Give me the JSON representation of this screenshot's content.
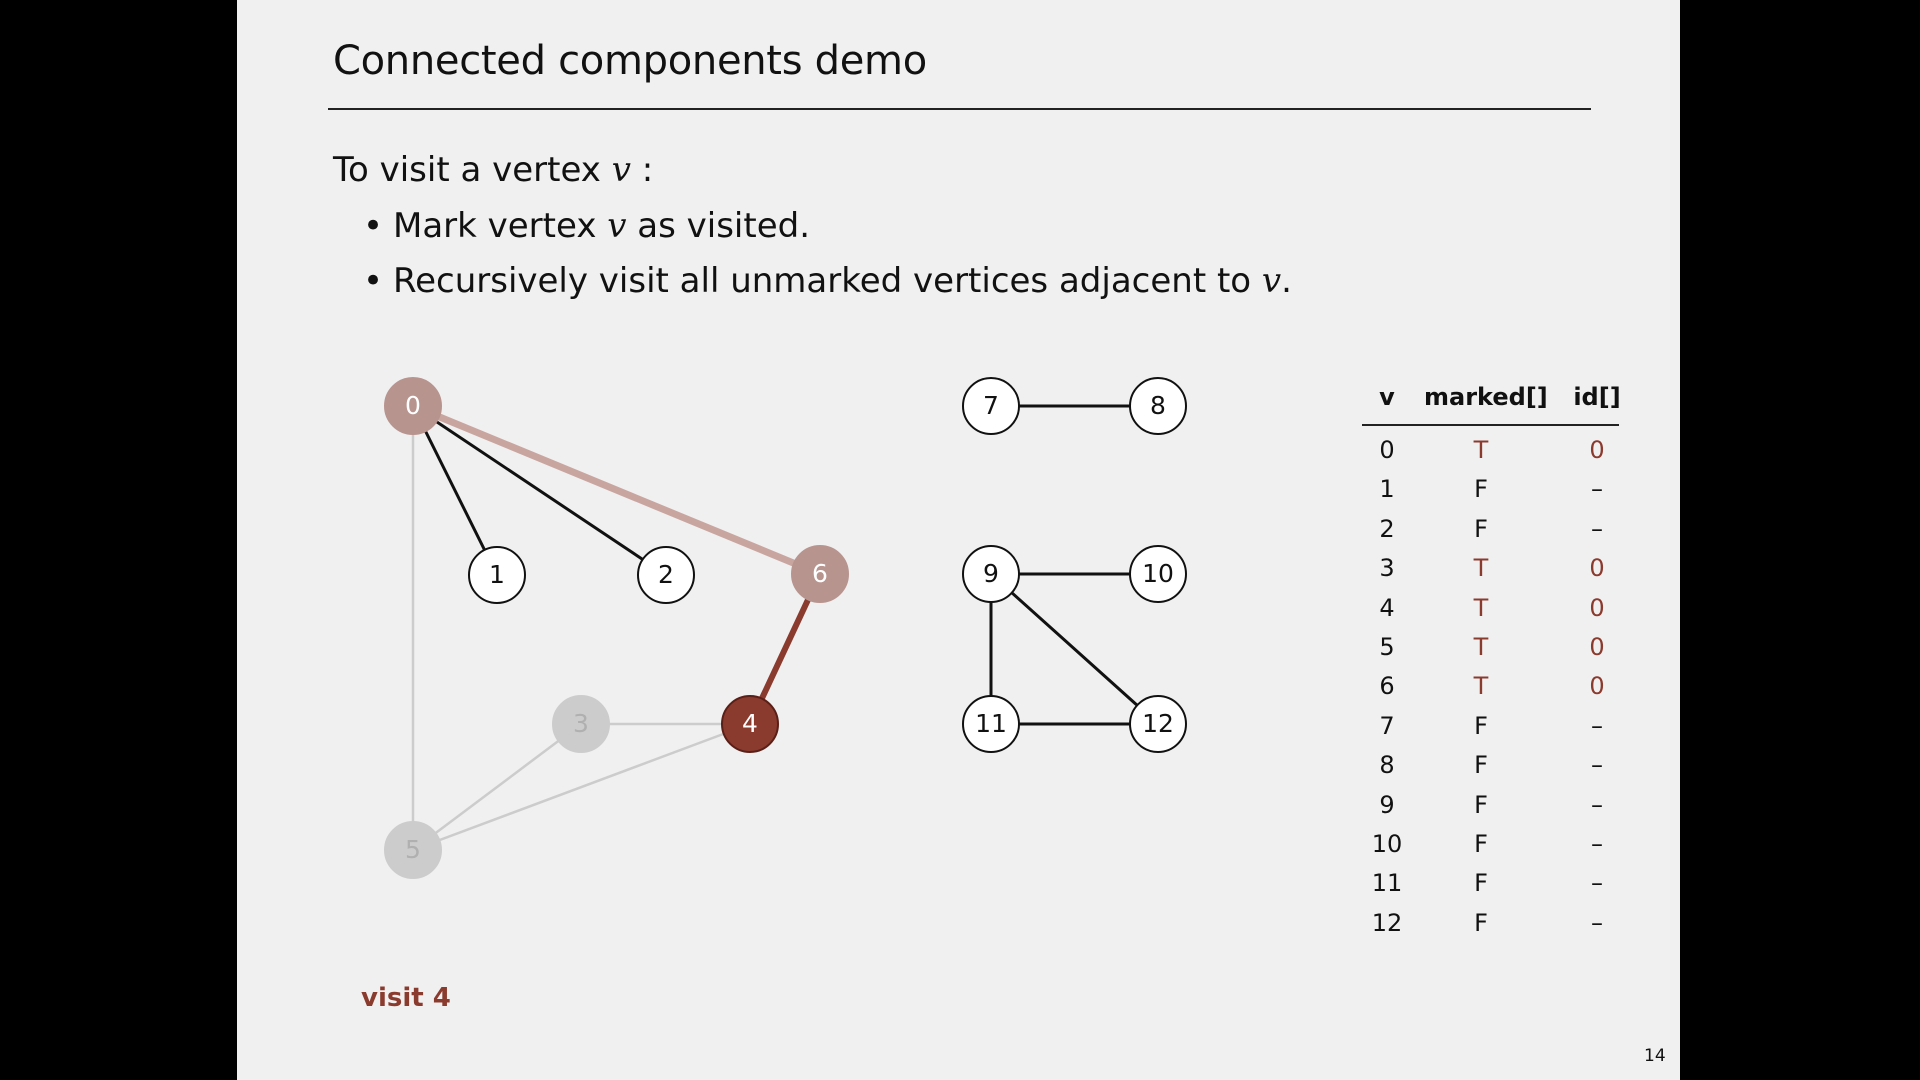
{
  "slide": {
    "title": "Connected components demo",
    "rule_intro_prefix": "To visit a vertex ",
    "rule_intro_var": "v",
    "rule_intro_suffix": " :",
    "bullet_symbol": "•",
    "bullet_1_prefix": "Mark vertex ",
    "bullet_1_var": "v",
    "bullet_1_suffix": " as visited.",
    "bullet_2_prefix": "Recursively visit all unmarked vertices adjacent to ",
    "bullet_2_var": "v",
    "bullet_2_suffix": ".",
    "status_text": "visit 4",
    "page_number": "14"
  },
  "colors": {
    "accent": "#8b3a2e",
    "visited_node": "#b8948f",
    "visited_edge": "#c9a5a0",
    "inactive": "#cccccc",
    "inactive_text": "#bbbbbb",
    "default_node": "#ffffff",
    "edge": "#111111"
  },
  "graph": {
    "nodes": [
      {
        "id": "0",
        "label": "0",
        "state": "visited"
      },
      {
        "id": "1",
        "label": "1",
        "state": "default"
      },
      {
        "id": "2",
        "label": "2",
        "state": "default"
      },
      {
        "id": "3",
        "label": "3",
        "state": "inactive"
      },
      {
        "id": "4",
        "label": "4",
        "state": "current"
      },
      {
        "id": "5",
        "label": "5",
        "state": "inactive"
      },
      {
        "id": "6",
        "label": "6",
        "state": "visited"
      },
      {
        "id": "7",
        "label": "7",
        "state": "default"
      },
      {
        "id": "8",
        "label": "8",
        "state": "default"
      },
      {
        "id": "9",
        "label": "9",
        "state": "default"
      },
      {
        "id": "10",
        "label": "10",
        "state": "default"
      },
      {
        "id": "11",
        "label": "11",
        "state": "default"
      },
      {
        "id": "12",
        "label": "12",
        "state": "default"
      }
    ],
    "edges": [
      {
        "from": "0",
        "to": "1",
        "state": "default"
      },
      {
        "from": "0",
        "to": "2",
        "state": "default"
      },
      {
        "from": "0",
        "to": "5",
        "state": "inactive"
      },
      {
        "from": "0",
        "to": "6",
        "state": "visited"
      },
      {
        "from": "6",
        "to": "4",
        "state": "current"
      },
      {
        "from": "3",
        "to": "4",
        "state": "inactive"
      },
      {
        "from": "3",
        "to": "5",
        "state": "inactive"
      },
      {
        "from": "4",
        "to": "5",
        "state": "inactive"
      },
      {
        "from": "7",
        "to": "8",
        "state": "default"
      },
      {
        "from": "9",
        "to": "10",
        "state": "default"
      },
      {
        "from": "9",
        "to": "11",
        "state": "default"
      },
      {
        "from": "9",
        "to": "12",
        "state": "default"
      },
      {
        "from": "11",
        "to": "12",
        "state": "default"
      }
    ]
  },
  "table": {
    "headers": {
      "v": "v",
      "marked": "marked[]",
      "id": "id[]"
    },
    "rows": [
      {
        "v": "0",
        "marked": "T",
        "id": "0"
      },
      {
        "v": "1",
        "marked": "F",
        "id": "–"
      },
      {
        "v": "2",
        "marked": "F",
        "id": "–"
      },
      {
        "v": "3",
        "marked": "T",
        "id": "0"
      },
      {
        "v": "4",
        "marked": "T",
        "id": "0"
      },
      {
        "v": "5",
        "marked": "T",
        "id": "0"
      },
      {
        "v": "6",
        "marked": "T",
        "id": "0"
      },
      {
        "v": "7",
        "marked": "F",
        "id": "–"
      },
      {
        "v": "8",
        "marked": "F",
        "id": "–"
      },
      {
        "v": "9",
        "marked": "F",
        "id": "–"
      },
      {
        "v": "10",
        "marked": "F",
        "id": "–"
      },
      {
        "v": "11",
        "marked": "F",
        "id": "–"
      },
      {
        "v": "12",
        "marked": "F",
        "id": "–"
      }
    ]
  }
}
